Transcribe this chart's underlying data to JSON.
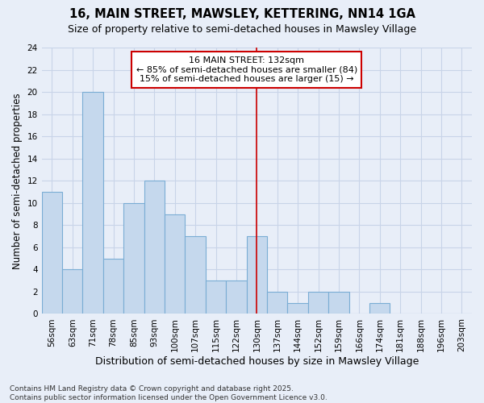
{
  "title": "16, MAIN STREET, MAWSLEY, KETTERING, NN14 1GA",
  "subtitle": "Size of property relative to semi-detached houses in Mawsley Village",
  "xlabel": "Distribution of semi-detached houses by size in Mawsley Village",
  "ylabel": "Number of semi-detached properties",
  "categories": [
    "56sqm",
    "63sqm",
    "71sqm",
    "78sqm",
    "85sqm",
    "93sqm",
    "100sqm",
    "107sqm",
    "115sqm",
    "122sqm",
    "130sqm",
    "137sqm",
    "144sqm",
    "152sqm",
    "159sqm",
    "166sqm",
    "174sqm",
    "181sqm",
    "188sqm",
    "196sqm",
    "203sqm"
  ],
  "values": [
    11,
    4,
    20,
    5,
    10,
    12,
    9,
    7,
    3,
    3,
    7,
    2,
    1,
    2,
    2,
    0,
    1,
    0,
    0,
    0,
    0
  ],
  "bar_color": "#c5d8ed",
  "bar_edge_color": "#7aadd4",
  "vline_index": 10,
  "vline_color": "#cc0000",
  "annotation_text": "16 MAIN STREET: 132sqm\n← 85% of semi-detached houses are smaller (84)\n15% of semi-detached houses are larger (15) →",
  "annotation_box_facecolor": "white",
  "annotation_box_edgecolor": "#cc0000",
  "ylim": [
    0,
    24
  ],
  "yticks": [
    0,
    2,
    4,
    6,
    8,
    10,
    12,
    14,
    16,
    18,
    20,
    22,
    24
  ],
  "grid_color": "#c8d4e8",
  "background_color": "#e8eef8",
  "footer": "Contains HM Land Registry data © Crown copyright and database right 2025.\nContains public sector information licensed under the Open Government Licence v3.0.",
  "title_fontsize": 10.5,
  "subtitle_fontsize": 9,
  "xlabel_fontsize": 9,
  "ylabel_fontsize": 8.5,
  "tick_fontsize": 7.5,
  "annotation_fontsize": 8,
  "footer_fontsize": 6.5
}
